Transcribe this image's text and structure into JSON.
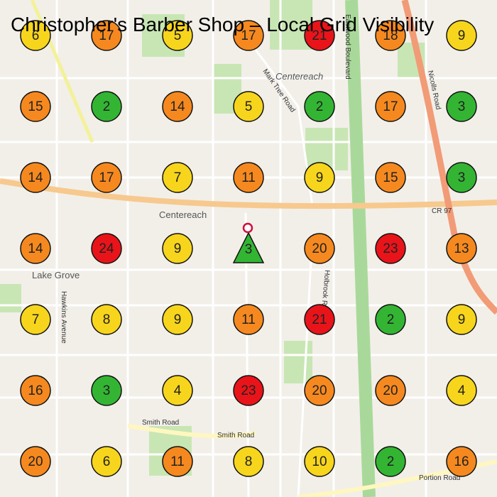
{
  "title": "Christopher's Barber Shop – Local Grid Visibility",
  "grid": [
    [
      {
        "rank": 6,
        "color": "#f7d51d"
      },
      {
        "rank": 17,
        "color": "#f5891f"
      },
      {
        "rank": 5,
        "color": "#f7d51d"
      },
      {
        "rank": 17,
        "color": "#f5891f"
      },
      {
        "rank": 21,
        "color": "#e8141a"
      },
      {
        "rank": 18,
        "color": "#f5891f"
      },
      {
        "rank": 9,
        "color": "#f7d51d"
      }
    ],
    [
      {
        "rank": 15,
        "color": "#f5891f"
      },
      {
        "rank": 2,
        "color": "#33b533"
      },
      {
        "rank": 14,
        "color": "#f5891f"
      },
      {
        "rank": 5,
        "color": "#f7d51d"
      },
      {
        "rank": 2,
        "color": "#33b533"
      },
      {
        "rank": 17,
        "color": "#f5891f"
      },
      {
        "rank": 3,
        "color": "#33b533"
      }
    ],
    [
      {
        "rank": 14,
        "color": "#f5891f"
      },
      {
        "rank": 17,
        "color": "#f5891f"
      },
      {
        "rank": 7,
        "color": "#f7d51d"
      },
      {
        "rank": 11,
        "color": "#f5891f"
      },
      {
        "rank": 9,
        "color": "#f7d51d"
      },
      {
        "rank": 15,
        "color": "#f5891f"
      },
      {
        "rank": 3,
        "color": "#33b533"
      }
    ],
    [
      {
        "rank": 14,
        "color": "#f5891f"
      },
      {
        "rank": 24,
        "color": "#e8141a"
      },
      {
        "rank": 9,
        "color": "#f7d51d"
      },
      {
        "rank": 3,
        "color": "#33b533",
        "shape": "triangle"
      },
      {
        "rank": 20,
        "color": "#f5891f"
      },
      {
        "rank": 23,
        "color": "#e8141a"
      },
      {
        "rank": 13,
        "color": "#f5891f"
      }
    ],
    [
      {
        "rank": 7,
        "color": "#f7d51d"
      },
      {
        "rank": 8,
        "color": "#f7d51d"
      },
      {
        "rank": 9,
        "color": "#f7d51d"
      },
      {
        "rank": 11,
        "color": "#f5891f"
      },
      {
        "rank": 21,
        "color": "#e8141a"
      },
      {
        "rank": 2,
        "color": "#33b533"
      },
      {
        "rank": 9,
        "color": "#f7d51d"
      }
    ],
    [
      {
        "rank": 16,
        "color": "#f5891f"
      },
      {
        "rank": 3,
        "color": "#33b533"
      },
      {
        "rank": 4,
        "color": "#f7d51d"
      },
      {
        "rank": 23,
        "color": "#e8141a"
      },
      {
        "rank": 20,
        "color": "#f5891f"
      },
      {
        "rank": 20,
        "color": "#f5891f"
      },
      {
        "rank": 4,
        "color": "#f7d51d"
      }
    ],
    [
      {
        "rank": 20,
        "color": "#f5891f"
      },
      {
        "rank": 6,
        "color": "#f7d51d"
      },
      {
        "rank": 11,
        "color": "#f5891f"
      },
      {
        "rank": 8,
        "color": "#f7d51d"
      },
      {
        "rank": 10,
        "color": "#f7d51d"
      },
      {
        "rank": 2,
        "color": "#33b533"
      },
      {
        "rank": 16,
        "color": "#f5891f"
      }
    ]
  ],
  "map_labels": [
    "Centereach",
    "Centereach",
    "Lake Grove",
    "Eastwood Boulevard",
    "Nicolls Road",
    "Mark Tree Road",
    "Smith Road",
    "Smith Road",
    "Portion Road",
    "Hawkins Avenue",
    "CR 97",
    "Holbrook Road"
  ]
}
